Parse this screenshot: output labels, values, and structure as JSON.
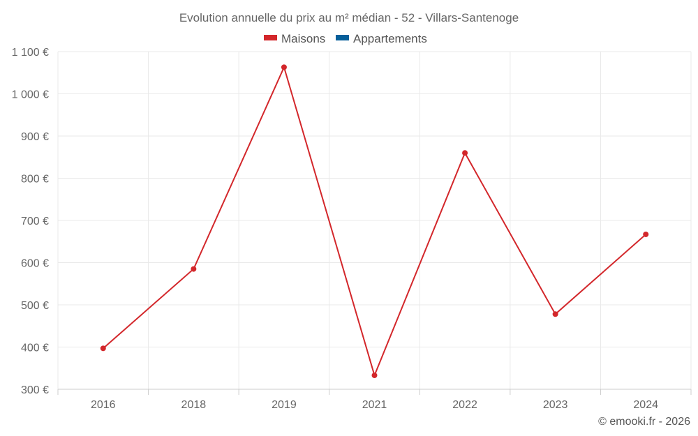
{
  "chart_data": {
    "type": "line",
    "title": "Evolution annuelle du prix au m² médian - 52 - Villars-Santenoge",
    "categories": [
      "2016",
      "2018",
      "2019",
      "2021",
      "2022",
      "2023",
      "2024"
    ],
    "series": [
      {
        "name": "Maisons",
        "color": "#d3272b",
        "values": [
          397,
          585,
          1063,
          333,
          860,
          478,
          667
        ]
      },
      {
        "name": "Appartements",
        "color": "#065f9a",
        "values": [
          null,
          null,
          null,
          null,
          null,
          null,
          null
        ]
      }
    ],
    "xlabel": "",
    "ylabel": "",
    "ylim": [
      300,
      1100
    ],
    "yticks": [
      300,
      400,
      500,
      600,
      700,
      800,
      900,
      1000,
      1100
    ],
    "ytick_labels": [
      "300 €",
      "400 €",
      "500 €",
      "600 €",
      "700 €",
      "800 €",
      "900 €",
      "1 000 €",
      "1 100 €"
    ],
    "grid": true,
    "legend_position": "top-center"
  },
  "credit": "© emooki.fr - 2026"
}
